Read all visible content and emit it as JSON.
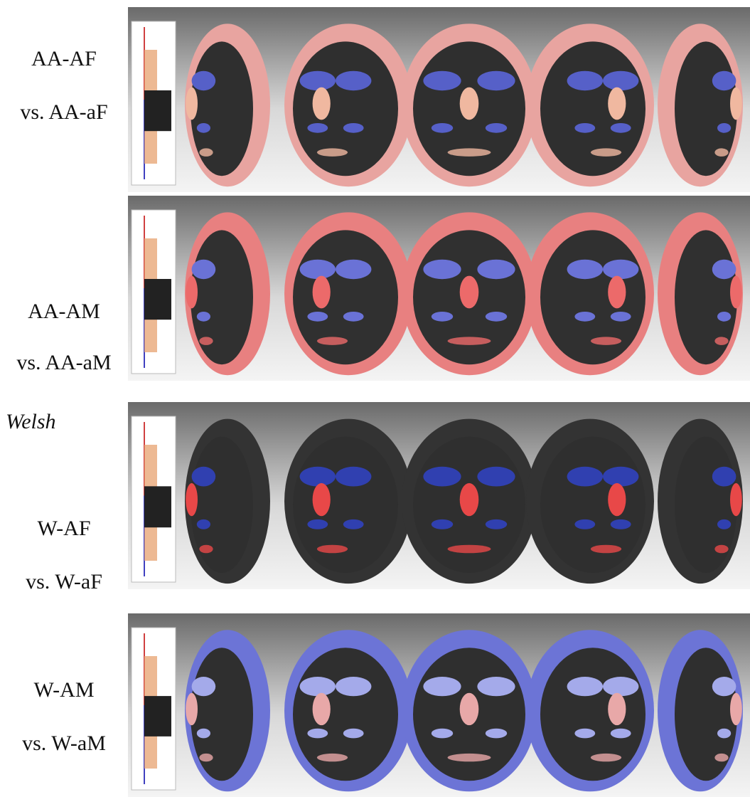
{
  "panels": [
    {
      "label": "AA-AF",
      "comparison": "vs. AA-aF"
    },
    {
      "label": "AA-AM",
      "comparison": "vs. AA-aM"
    },
    {
      "label": "W-AF",
      "comparison": "vs. W-aF"
    },
    {
      "label": "W-AM",
      "comparison": "vs. W-aM"
    }
  ],
  "group_label": "Welsh"
}
